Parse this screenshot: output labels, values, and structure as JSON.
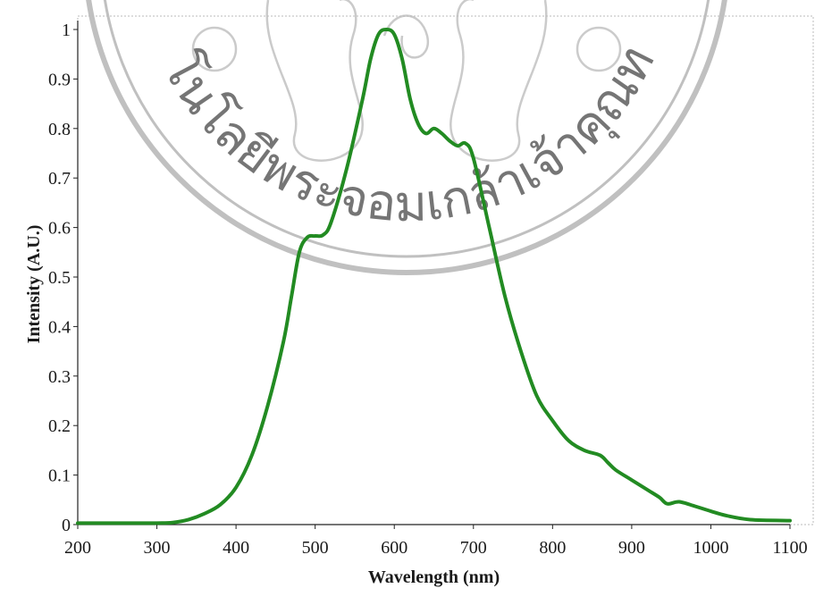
{
  "watermark": {
    "text": "โนโลยีพระจอมเกล้าเจ้าคุณทหาร",
    "color": "#8c8c8c"
  },
  "chart_data": {
    "type": "line",
    "title": "",
    "xlabel": "Wavelength (nm)",
    "ylabel": "Intensity (A.U.)",
    "xlim": [
      200,
      1100
    ],
    "ylim": [
      0,
      1
    ],
    "xticks": [
      200,
      300,
      400,
      500,
      600,
      700,
      800,
      900,
      1000,
      1100
    ],
    "yticks": [
      0,
      0.1,
      0.2,
      0.3,
      0.4,
      0.5,
      0.6,
      0.7,
      0.8,
      0.9,
      1
    ],
    "ytick_labels": [
      "0",
      "0.1",
      "0.2",
      "0.3",
      "0.4",
      "0.5",
      "0.6",
      "0.7",
      "0.8",
      "0.9",
      "1"
    ],
    "grid": false,
    "legend": "none",
    "line_color": "#228b22",
    "series": [
      {
        "x": [
          200,
          250,
          300,
          320,
          340,
          360,
          380,
          400,
          420,
          440,
          460,
          470,
          480,
          490,
          500,
          510,
          520,
          540,
          560,
          570,
          580,
          590,
          600,
          610,
          620,
          630,
          640,
          650,
          660,
          670,
          680,
          690,
          700,
          720,
          740,
          760,
          780,
          800,
          820,
          840,
          860,
          870,
          880,
          900,
          920,
          935,
          945,
          960,
          980,
          1000,
          1020,
          1050,
          1100
        ],
        "y": [
          0.003,
          0.003,
          0.003,
          0.004,
          0.01,
          0.022,
          0.04,
          0.075,
          0.14,
          0.24,
          0.37,
          0.46,
          0.55,
          0.58,
          0.583,
          0.585,
          0.61,
          0.72,
          0.86,
          0.94,
          0.99,
          1.0,
          0.99,
          0.94,
          0.86,
          0.81,
          0.79,
          0.8,
          0.79,
          0.775,
          0.765,
          0.77,
          0.74,
          0.6,
          0.46,
          0.35,
          0.26,
          0.21,
          0.17,
          0.15,
          0.14,
          0.125,
          0.11,
          0.09,
          0.07,
          0.055,
          0.042,
          0.046,
          0.037,
          0.027,
          0.018,
          0.01,
          0.008
        ]
      }
    ]
  }
}
